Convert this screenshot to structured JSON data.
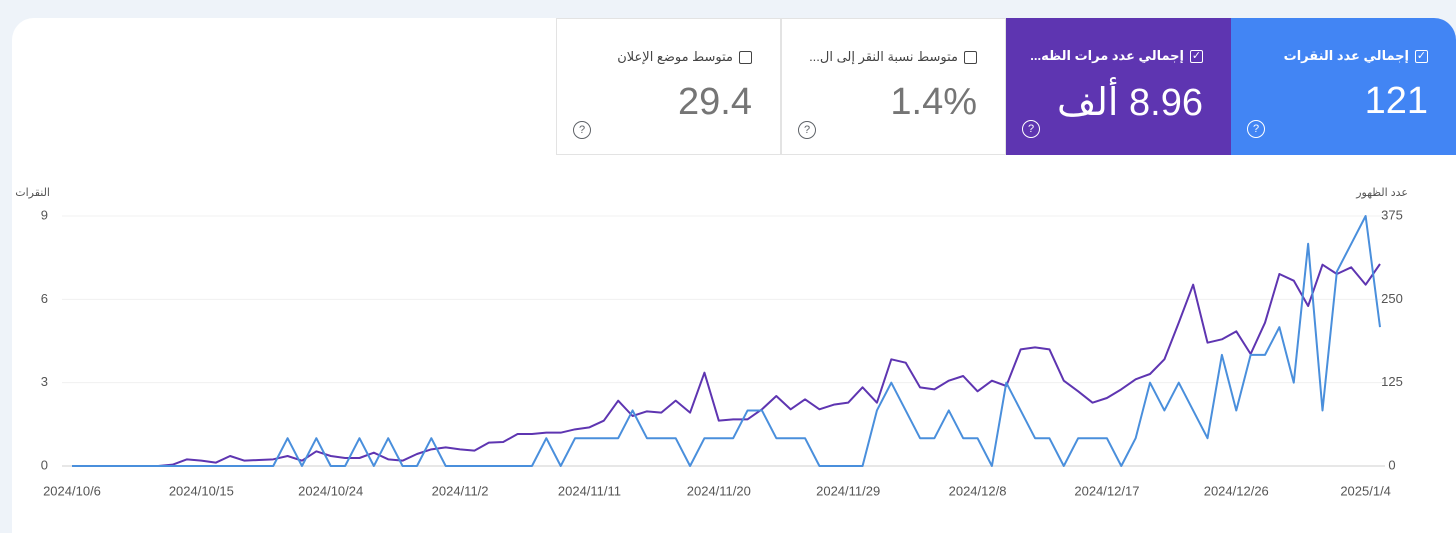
{
  "cards": [
    {
      "label": "إجمالي عدد النقرات",
      "value": "121"
    },
    {
      "label": "إجمالي عدد مرات الظه...",
      "value": "8.96 ألف"
    },
    {
      "label": "متوسط نسبة النقر إلى ال...",
      "value": "1.4%"
    },
    {
      "label": "متوسط موضع الإعلان",
      "value": "29.4"
    }
  ],
  "chart_data": {
    "type": "line",
    "y_label": "النقرات",
    "y2_label": "عدد الظهور",
    "categories": [
      "2024/10/6",
      null,
      null,
      null,
      null,
      null,
      null,
      null,
      null,
      "2024/10/15",
      null,
      null,
      null,
      null,
      null,
      null,
      null,
      null,
      "2024/10/24",
      null,
      null,
      null,
      null,
      null,
      null,
      null,
      null,
      "2024/11/2",
      null,
      null,
      null,
      null,
      null,
      null,
      null,
      null,
      "2024/11/11",
      null,
      null,
      null,
      null,
      null,
      null,
      null,
      null,
      "2024/11/20",
      null,
      null,
      null,
      null,
      null,
      null,
      null,
      null,
      "2024/11/29",
      null,
      null,
      null,
      null,
      null,
      null,
      null,
      null,
      "2024/12/8",
      null,
      null,
      null,
      null,
      null,
      null,
      null,
      null,
      "2024/12/17",
      null,
      null,
      null,
      null,
      null,
      null,
      null,
      null,
      "2024/12/26",
      null,
      null,
      null,
      null,
      null,
      null,
      null,
      null,
      "2025/1/4",
      null
    ],
    "series": [
      {
        "name": "إجمالي عدد النقرات",
        "color": "#4a8fdc",
        "values": [
          0,
          0,
          0,
          0,
          0,
          0,
          0,
          0,
          0,
          0,
          0,
          0,
          0,
          0,
          0,
          1,
          0,
          1,
          0,
          0,
          1,
          0,
          1,
          0,
          0,
          1,
          0,
          0,
          0,
          0,
          0,
          0,
          0,
          1,
          0,
          1,
          1,
          1,
          1,
          2,
          1,
          1,
          1,
          0,
          1,
          1,
          1,
          2,
          2,
          1,
          1,
          1,
          0,
          0,
          0,
          0,
          2,
          3,
          2,
          1,
          1,
          2,
          1,
          1,
          0,
          3,
          2,
          1,
          1,
          0,
          1,
          1,
          1,
          0,
          1,
          3,
          2,
          3,
          2,
          1,
          4,
          2,
          4,
          4,
          5,
          3,
          8,
          2,
          7,
          8,
          9,
          5
        ]
      },
      {
        "name": "إجمالي عدد مرات الظهور",
        "color": "#5e35b1",
        "axis": "y2",
        "values": [
          0,
          0,
          0,
          0,
          0,
          0,
          0,
          2,
          10,
          8,
          5,
          15,
          8,
          9,
          10,
          15,
          8,
          22,
          15,
          12,
          12,
          20,
          10,
          8,
          18,
          25,
          28,
          25,
          23,
          35,
          36,
          48,
          48,
          50,
          50,
          55,
          58,
          68,
          98,
          75,
          82,
          80,
          98,
          80,
          140,
          68,
          70,
          70,
          85,
          105,
          85,
          100,
          85,
          92,
          95,
          118,
          95,
          160,
          155,
          118,
          115,
          128,
          135,
          112,
          128,
          120,
          175,
          178,
          175,
          128,
          112,
          95,
          102,
          115,
          130,
          138,
          160,
          215,
          272,
          185,
          190,
          202,
          168,
          215,
          288,
          278,
          240,
          302,
          288,
          298,
          272,
          303
        ]
      }
    ],
    "ylim": [
      0,
      9
    ],
    "yticks": [
      0,
      3,
      6,
      9
    ],
    "y2lim": [
      0,
      375
    ],
    "y2ticks": [
      0,
      125,
      250,
      375
    ],
    "grid": true
  }
}
